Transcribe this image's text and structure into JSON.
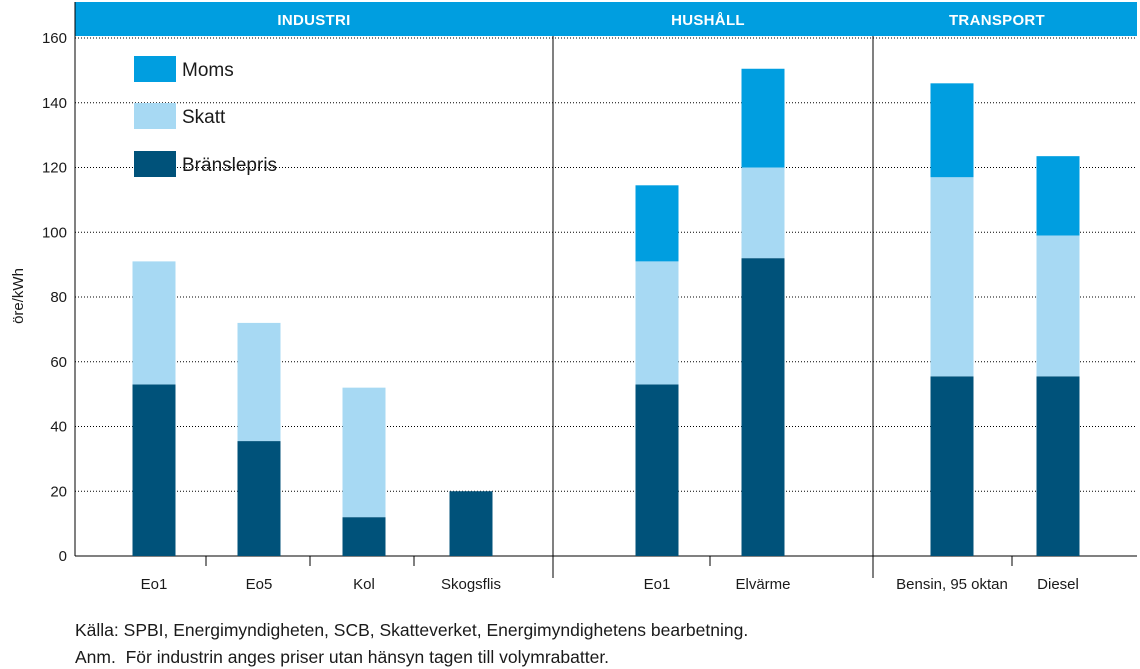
{
  "chart_data": {
    "type": "bar",
    "stacked": true,
    "ylabel": "öre/kWh",
    "ylim": [
      0,
      160
    ],
    "yticks": [
      0,
      20,
      40,
      60,
      80,
      100,
      120,
      140,
      160
    ],
    "grid": true,
    "legend_position": "top-left",
    "sections": [
      {
        "name": "INDUSTRI",
        "categories": [
          "Eo1",
          "Eo5",
          "Kol",
          "Skogsflis"
        ]
      },
      {
        "name": "HUSHÅLL",
        "categories": [
          "Eo1",
          "Elvärme"
        ]
      },
      {
        "name": "TRANSPORT",
        "categories": [
          "Bensin, 95 oktan",
          "Diesel"
        ]
      }
    ],
    "categories": [
      "Eo1",
      "Eo5",
      "Kol",
      "Skogsflis",
      "Eo1",
      "Elvärme",
      "Bensin, 95 oktan",
      "Diesel"
    ],
    "series": [
      {
        "name": "Bränslepris",
        "color": "#00527a",
        "values": [
          53,
          35.5,
          12,
          20,
          53,
          92,
          55.5,
          55.5
        ]
      },
      {
        "name": "Skatt",
        "color": "#a7d9f3",
        "values": [
          38,
          36.5,
          40,
          0,
          38,
          28,
          61.5,
          43.5
        ]
      },
      {
        "name": "Moms",
        "color": "#009ee0",
        "values": [
          0,
          0,
          0,
          0,
          23.5,
          30.5,
          29,
          24.5
        ]
      }
    ],
    "legend_order": [
      "Moms",
      "Skatt",
      "Bränslepris"
    ]
  },
  "footer": {
    "source_label": "Källa:",
    "source_text": "SPBI, Energimyndigheten, SCB, Skatteverket, Energimyndighetens bearbetning.",
    "note_label": "Anm.",
    "note_text": "För industrin anges priser utan hänsyn tagen till volymrabatter."
  },
  "colors": {
    "header_band": "#009ee0"
  }
}
